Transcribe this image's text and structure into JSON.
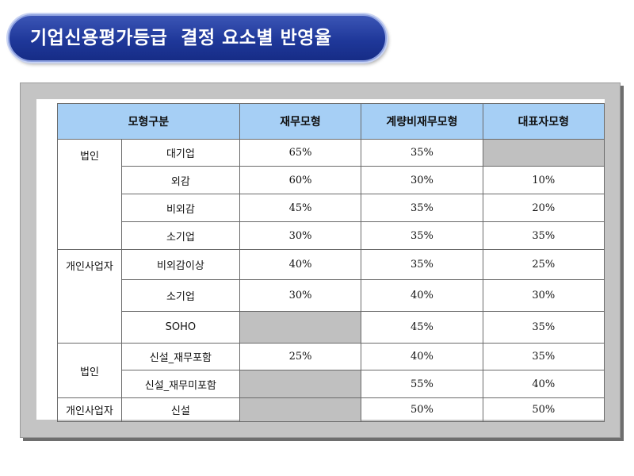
{
  "title": "기업신용평가등급  결정 요소별 반영율",
  "header": {
    "model_type": "모형구분",
    "financial": "재무모형",
    "quant_nonfinancial": "계량비재무모형",
    "representative": "대표자모형"
  },
  "groups": {
    "g1": "법인",
    "g2": "개인사업자",
    "g3": "법인",
    "g4": "개인사업자"
  },
  "rows": [
    {
      "sub": "대기업",
      "financial": "65%",
      "quant_nonfinancial": "35%",
      "representative": ""
    },
    {
      "sub": "외감",
      "financial": "60%",
      "quant_nonfinancial": "30%",
      "representative": "10%"
    },
    {
      "sub": "비외감",
      "financial": "45%",
      "quant_nonfinancial": "35%",
      "representative": "20%"
    },
    {
      "sub": "소기업",
      "financial": "30%",
      "quant_nonfinancial": "35%",
      "representative": "35%"
    },
    {
      "sub": "비외감이상",
      "financial": "40%",
      "quant_nonfinancial": "35%",
      "representative": "25%"
    },
    {
      "sub": "소기업",
      "financial": "30%",
      "quant_nonfinancial": "40%",
      "representative": "30%"
    },
    {
      "sub": "SOHO",
      "financial": "",
      "quant_nonfinancial": "45%",
      "representative": "35%"
    },
    {
      "sub": "신설_재무포함",
      "financial": "25%",
      "quant_nonfinancial": "40%",
      "representative": "35%"
    },
    {
      "sub": "신설_재무미포함",
      "financial": "",
      "quant_nonfinancial": "55%",
      "representative": "40%"
    },
    {
      "sub": "신설",
      "financial": "",
      "quant_nonfinancial": "50%",
      "representative": "50%"
    }
  ]
}
